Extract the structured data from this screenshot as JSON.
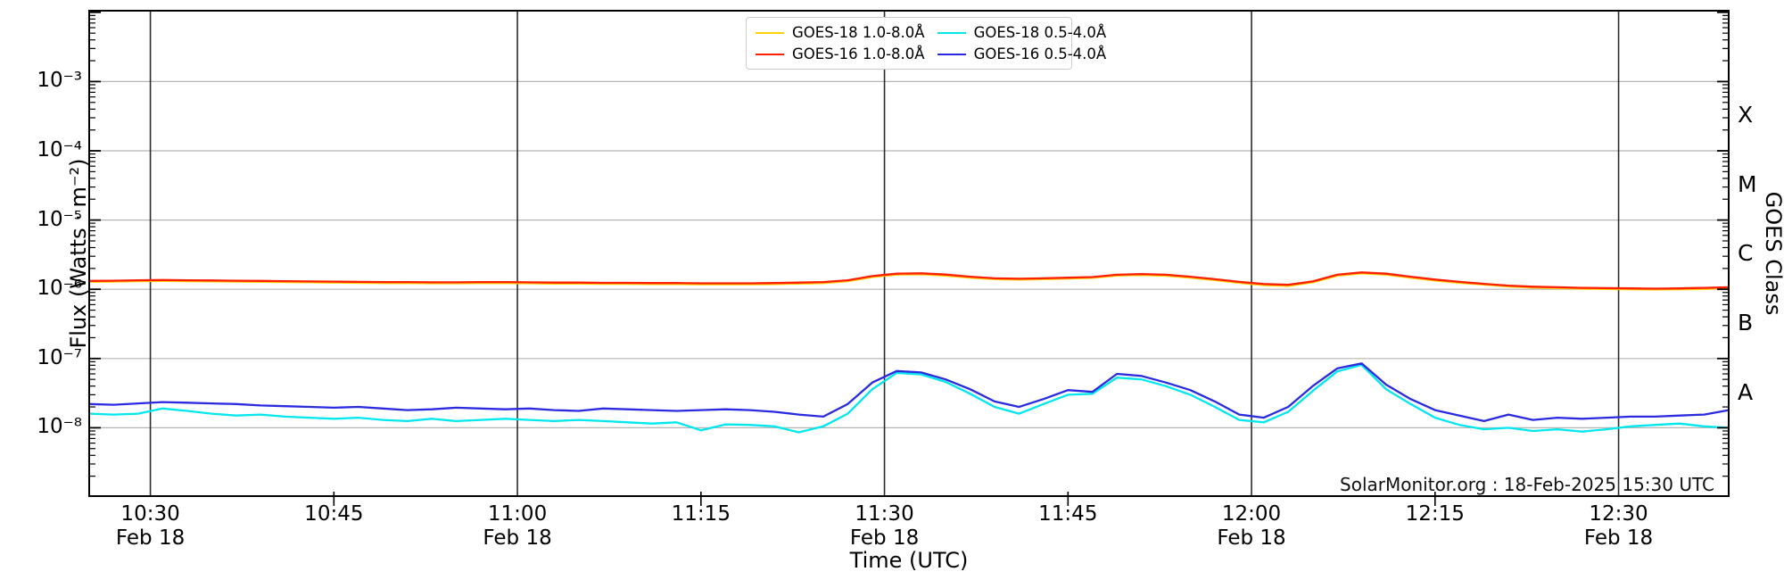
{
  "chart_data": {
    "type": "line",
    "title": "",
    "xlabel": "Time (UTC)",
    "ylabel": "Flux (Watts · m⁻²)",
    "y2label": "GOES Class",
    "annotation": "SolarMonitor.org : 18-Feb-2025 15:30 UTC",
    "grid": true,
    "legend_position": "top-center",
    "x_range": [
      "10:25",
      "12:39"
    ],
    "ylim": [
      1e-09,
      0.01
    ],
    "x_date_label": "Feb 18",
    "x_major_ticks": [
      "10:30",
      "11:00",
      "11:30",
      "12:00",
      "12:30"
    ],
    "x_minor_ticks": [
      "10:45",
      "11:15",
      "11:45",
      "12:15"
    ],
    "y_ticks": [
      {
        "label": "10⁻³",
        "exp": -3
      },
      {
        "label": "10⁻⁴",
        "exp": -4
      },
      {
        "label": "10⁻⁵",
        "exp": -5
      },
      {
        "label": "10⁻⁶",
        "exp": -6
      },
      {
        "label": "10⁻⁷",
        "exp": -7
      },
      {
        "label": "10⁻⁸",
        "exp": -8
      }
    ],
    "goes_class_labels": [
      {
        "label": "X",
        "exp": -3.5
      },
      {
        "label": "M",
        "exp": -4.5
      },
      {
        "label": "C",
        "exp": -5.5
      },
      {
        "label": "B",
        "exp": -6.5
      },
      {
        "label": "A",
        "exp": -7.5
      }
    ],
    "x": [
      "10:25",
      "10:27",
      "10:29",
      "10:31",
      "10:33",
      "10:35",
      "10:37",
      "10:39",
      "10:41",
      "10:43",
      "10:45",
      "10:47",
      "10:49",
      "10:51",
      "10:53",
      "10:55",
      "10:57",
      "10:59",
      "11:01",
      "11:03",
      "11:05",
      "11:07",
      "11:09",
      "11:11",
      "11:13",
      "11:15",
      "11:17",
      "11:19",
      "11:21",
      "11:23",
      "11:25",
      "11:27",
      "11:29",
      "11:31",
      "11:33",
      "11:35",
      "11:37",
      "11:39",
      "11:41",
      "11:43",
      "11:45",
      "11:47",
      "11:49",
      "11:51",
      "11:53",
      "11:55",
      "11:57",
      "11:59",
      "12:01",
      "12:03",
      "12:05",
      "12:07",
      "12:09",
      "12:11",
      "12:13",
      "12:15",
      "12:17",
      "12:19",
      "12:21",
      "12:23",
      "12:25",
      "12:27",
      "12:29",
      "12:31",
      "12:33",
      "12:35",
      "12:37",
      "12:39"
    ],
    "series": [
      {
        "name": "GOES-18 1.0-8.0Å",
        "color": "#FFD300",
        "values": [
          1.28e-06,
          1.29e-06,
          1.31e-06,
          1.32e-06,
          1.31e-06,
          1.3e-06,
          1.29e-06,
          1.28e-06,
          1.27e-06,
          1.26e-06,
          1.25e-06,
          1.24e-06,
          1.23e-06,
          1.23e-06,
          1.22e-06,
          1.22e-06,
          1.23e-06,
          1.23e-06,
          1.22e-06,
          1.21e-06,
          1.21e-06,
          1.2e-06,
          1.2e-06,
          1.19e-06,
          1.19e-06,
          1.18e-06,
          1.18e-06,
          1.18e-06,
          1.19e-06,
          1.21e-06,
          1.23e-06,
          1.31e-06,
          1.5e-06,
          1.63e-06,
          1.65e-06,
          1.58e-06,
          1.47e-06,
          1.4e-06,
          1.38e-06,
          1.4e-06,
          1.43e-06,
          1.46e-06,
          1.58e-06,
          1.61e-06,
          1.57e-06,
          1.47e-06,
          1.36e-06,
          1.24e-06,
          1.15e-06,
          1.12e-06,
          1.26e-06,
          1.57e-06,
          1.7e-06,
          1.63e-06,
          1.47e-06,
          1.34e-06,
          1.24e-06,
          1.17e-06,
          1.1e-06,
          1.06e-06,
          1.04e-06,
          1.02e-06,
          1.01e-06,
          1e-06,
          9.9e-07,
          1e-06,
          1.01e-06,
          1.04e-06
        ]
      },
      {
        "name": "GOES-16 1.0-8.0Å",
        "color": "#FF1E00",
        "values": [
          1.32e-06,
          1.33e-06,
          1.35e-06,
          1.36e-06,
          1.35e-06,
          1.34e-06,
          1.33e-06,
          1.32e-06,
          1.31e-06,
          1.3e-06,
          1.29e-06,
          1.28e-06,
          1.27e-06,
          1.27e-06,
          1.26e-06,
          1.26e-06,
          1.27e-06,
          1.27e-06,
          1.26e-06,
          1.25e-06,
          1.25e-06,
          1.24e-06,
          1.24e-06,
          1.23e-06,
          1.23e-06,
          1.22e-06,
          1.22e-06,
          1.22e-06,
          1.23e-06,
          1.25e-06,
          1.27e-06,
          1.35e-06,
          1.55e-06,
          1.68e-06,
          1.7e-06,
          1.63e-06,
          1.52e-06,
          1.44e-06,
          1.42e-06,
          1.44e-06,
          1.47e-06,
          1.5e-06,
          1.62e-06,
          1.66e-06,
          1.62e-06,
          1.52e-06,
          1.4e-06,
          1.28e-06,
          1.19e-06,
          1.16e-06,
          1.3e-06,
          1.62e-06,
          1.75e-06,
          1.68e-06,
          1.52e-06,
          1.38e-06,
          1.28e-06,
          1.2e-06,
          1.13e-06,
          1.09e-06,
          1.07e-06,
          1.05e-06,
          1.04e-06,
          1.03e-06,
          1.02e-06,
          1.03e-06,
          1.05e-06,
          1.07e-06
        ]
      },
      {
        "name": "GOES-18 0.5-4.0Å",
        "color": "#00E7EE",
        "values": [
          1.6e-08,
          1.55e-08,
          1.6e-08,
          1.9e-08,
          1.75e-08,
          1.6e-08,
          1.5e-08,
          1.55e-08,
          1.45e-08,
          1.4e-08,
          1.35e-08,
          1.4e-08,
          1.3e-08,
          1.25e-08,
          1.35e-08,
          1.25e-08,
          1.3e-08,
          1.35e-08,
          1.3e-08,
          1.25e-08,
          1.3e-08,
          1.25e-08,
          1.2e-08,
          1.15e-08,
          1.2e-08,
          9.2e-09,
          1.12e-08,
          1.1e-08,
          1.05e-08,
          8.6e-09,
          1.05e-08,
          1.6e-08,
          3.6e-08,
          6.2e-08,
          5.9e-08,
          4.6e-08,
          3.1e-08,
          2e-08,
          1.6e-08,
          2.2e-08,
          3e-08,
          3.1e-08,
          5.3e-08,
          5e-08,
          4e-08,
          3e-08,
          2e-08,
          1.3e-08,
          1.2e-08,
          1.7e-08,
          3.4e-08,
          6.5e-08,
          8.1e-08,
          3.6e-08,
          2.2e-08,
          1.4e-08,
          1.1e-08,
          9.5e-09,
          1e-08,
          9e-09,
          9.5e-09,
          8.8e-09,
          9.5e-09,
          1.05e-08,
          1.1e-08,
          1.15e-08,
          1.05e-08,
          1e-08
        ]
      },
      {
        "name": "GOES-16 0.5-4.0Å",
        "color": "#2A2AE0",
        "values": [
          2.2e-08,
          2.15e-08,
          2.25e-08,
          2.35e-08,
          2.3e-08,
          2.25e-08,
          2.2e-08,
          2.1e-08,
          2.05e-08,
          2e-08,
          1.95e-08,
          2e-08,
          1.9e-08,
          1.8e-08,
          1.85e-08,
          1.95e-08,
          1.9e-08,
          1.85e-08,
          1.9e-08,
          1.8e-08,
          1.75e-08,
          1.9e-08,
          1.85e-08,
          1.8e-08,
          1.75e-08,
          1.8e-08,
          1.85e-08,
          1.8e-08,
          1.7e-08,
          1.55e-08,
          1.45e-08,
          2.2e-08,
          4.5e-08,
          6.6e-08,
          6.3e-08,
          5e-08,
          3.6e-08,
          2.4e-08,
          2e-08,
          2.6e-08,
          3.5e-08,
          3.3e-08,
          6e-08,
          5.6e-08,
          4.5e-08,
          3.5e-08,
          2.4e-08,
          1.55e-08,
          1.4e-08,
          2e-08,
          4e-08,
          7.2e-08,
          8.5e-08,
          4.2e-08,
          2.6e-08,
          1.8e-08,
          1.5e-08,
          1.25e-08,
          1.55e-08,
          1.3e-08,
          1.4e-08,
          1.35e-08,
          1.4e-08,
          1.45e-08,
          1.45e-08,
          1.5e-08,
          1.55e-08,
          1.8e-08
        ]
      }
    ]
  }
}
